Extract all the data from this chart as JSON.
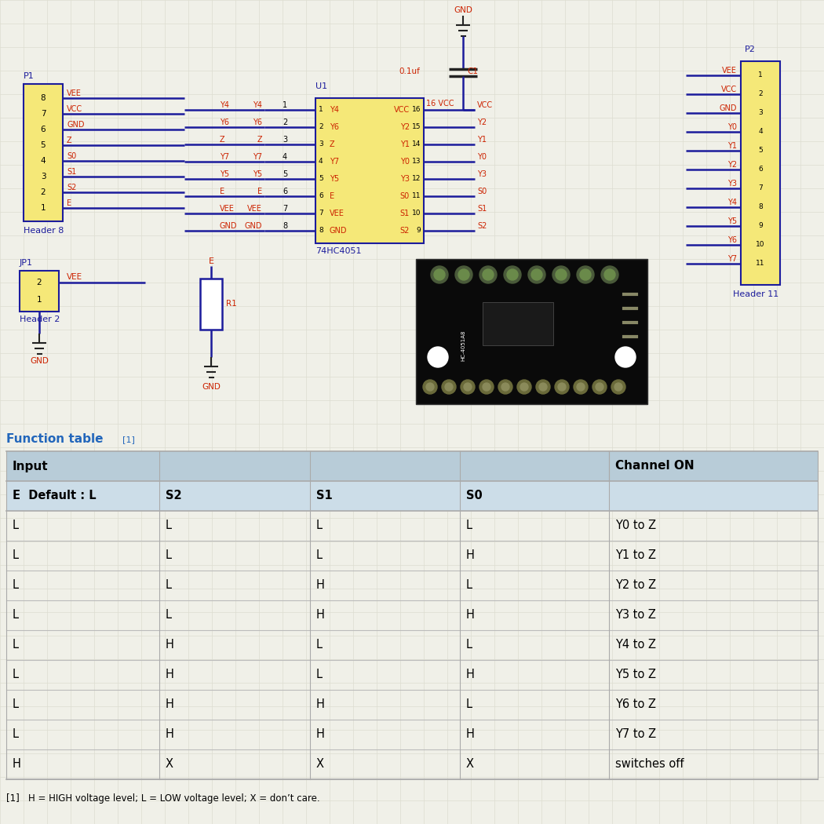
{
  "bg_color": "#f0f0e8",
  "grid_color": "#ddddd0",
  "blue": "#1c1c9c",
  "red": "#cc2200",
  "dark_blue": "#1c1c9c",
  "title_color": "#2266bb",
  "ic_pins_left": [
    "Y4",
    "Y6",
    "Z",
    "Y7",
    "Y5",
    "E",
    "VEE",
    "GND"
  ],
  "ic_pins_right": [
    "VCC",
    "Y2",
    "Y1",
    "Y0",
    "Y3",
    "S0",
    "S1",
    "S2"
  ],
  "ic_pin_nums_left": [
    "1",
    "2",
    "3",
    "4",
    "5",
    "6",
    "7",
    "8"
  ],
  "ic_pin_nums_right": [
    "16",
    "15",
    "14",
    "13",
    "12",
    "11",
    "10",
    "9"
  ],
  "header8_pins": [
    "8",
    "7",
    "6",
    "5",
    "4",
    "3",
    "2",
    "1"
  ],
  "header8_labels": [
    "VEE",
    "VCC",
    "GND",
    "Z",
    "S0",
    "S1",
    "S2",
    "E"
  ],
  "header11_labels": [
    "VEE",
    "VCC",
    "GND",
    "Y0",
    "Y1",
    "Y2",
    "Y3",
    "Y4",
    "Y5",
    "Y6",
    "Y7"
  ],
  "header11_nums": [
    "1",
    "2",
    "3",
    "4",
    "5",
    "6",
    "7",
    "8",
    "9",
    "10",
    "11"
  ],
  "mid_connect_labels": [
    "Y4",
    "Y6",
    "Z",
    "Y7",
    "Y5",
    "E",
    "VEE",
    "GND"
  ],
  "footnote": "[1]   H = HIGH voltage level; L = LOW voltage level; X = don’t care.",
  "table_rows": [
    [
      "L",
      "L",
      "L",
      "L",
      "Y0 to Z"
    ],
    [
      "L",
      "L",
      "L",
      "H",
      "Y1 to Z"
    ],
    [
      "L",
      "L",
      "H",
      "L",
      "Y2 to Z"
    ],
    [
      "L",
      "L",
      "H",
      "H",
      "Y3 to Z"
    ],
    [
      "L",
      "H",
      "L",
      "L",
      "Y4 to Z"
    ],
    [
      "L",
      "H",
      "L",
      "H",
      "Y5 to Z"
    ],
    [
      "L",
      "H",
      "H",
      "L",
      "Y6 to Z"
    ],
    [
      "L",
      "H",
      "H",
      "H",
      "Y7 to Z"
    ],
    [
      "H",
      "X",
      "X",
      "X",
      "switches off"
    ]
  ]
}
